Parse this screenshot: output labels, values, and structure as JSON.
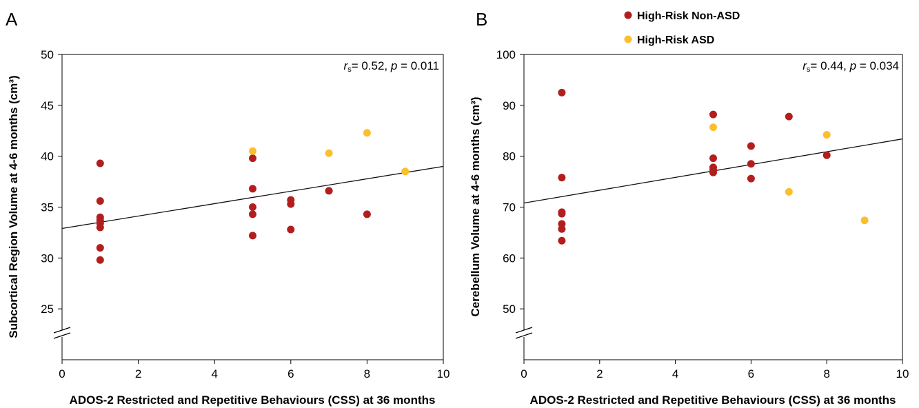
{
  "figure": {
    "legend": [
      {
        "label": "High-Risk Non-ASD",
        "color": "#b21e1e"
      },
      {
        "label": "High-Risk ASD",
        "color": "#fbbf2e"
      }
    ]
  },
  "chart_data": [
    {
      "type": "scatter",
      "panel": "A",
      "xlabel": "ADOS-2 Restricted and Repetitive Behaviours (CSS) at 36 months",
      "ylabel": "Subcortical Region Volume at 4-6 months (cm³)",
      "xlim": [
        0,
        10
      ],
      "ylim": [
        20,
        50
      ],
      "axis_break": true,
      "xticks": [
        0,
        2,
        4,
        6,
        8,
        10
      ],
      "yticks": [
        25,
        30,
        35,
        40,
        45,
        50
      ],
      "grid": false,
      "annotation": {
        "r_label": "r",
        "r_sub": "s",
        "r_value": "= 0.52, ",
        "p_label": "p",
        "p_value": " = 0.011"
      },
      "trendline": {
        "x": [
          0,
          10
        ],
        "y": [
          32.9,
          39.0
        ]
      },
      "series": [
        {
          "name": "High-Risk Non-ASD",
          "color": "#b21e1e",
          "points": [
            [
              1,
              39.3
            ],
            [
              1,
              35.6
            ],
            [
              1,
              34.0
            ],
            [
              1,
              33.7
            ],
            [
              1,
              33.4
            ],
            [
              1,
              33.0
            ],
            [
              1,
              31.0
            ],
            [
              1,
              29.8
            ],
            [
              5,
              39.8
            ],
            [
              5,
              36.8
            ],
            [
              5,
              35.0
            ],
            [
              5,
              34.3
            ],
            [
              5,
              32.2
            ],
            [
              6,
              35.7
            ],
            [
              6,
              35.3
            ],
            [
              6,
              32.8
            ],
            [
              7,
              36.6
            ],
            [
              8,
              34.3
            ]
          ]
        },
        {
          "name": "High-Risk ASD",
          "color": "#fbbf2e",
          "points": [
            [
              5,
              40.5
            ],
            [
              7,
              40.3
            ],
            [
              8,
              42.3
            ],
            [
              9,
              38.5
            ]
          ]
        }
      ]
    },
    {
      "type": "scatter",
      "panel": "B",
      "xlabel": "ADOS-2 Restricted and Repetitive Behaviours (CSS) at 36 months",
      "ylabel": "Cerebellum Volume at 4-6 months (cm³)",
      "xlim": [
        0,
        10
      ],
      "ylim": [
        40,
        100
      ],
      "axis_break": true,
      "xticks": [
        0,
        2,
        4,
        6,
        8,
        10
      ],
      "yticks": [
        50,
        60,
        70,
        80,
        90,
        100
      ],
      "grid": false,
      "annotation": {
        "r_label": "r",
        "r_sub": "s",
        "r_value": "= 0.44, ",
        "p_label": "p",
        "p_value": " = 0.034"
      },
      "trendline": {
        "x": [
          0,
          10
        ],
        "y": [
          70.8,
          83.4
        ]
      },
      "series": [
        {
          "name": "High-Risk Non-ASD",
          "color": "#b21e1e",
          "points": [
            [
              1,
              92.5
            ],
            [
              1,
              75.8
            ],
            [
              1,
              69.0
            ],
            [
              1,
              68.7
            ],
            [
              1,
              66.7
            ],
            [
              1,
              65.7
            ],
            [
              1,
              63.4
            ],
            [
              5,
              88.2
            ],
            [
              5,
              79.6
            ],
            [
              5,
              77.8
            ],
            [
              5,
              77.3
            ],
            [
              5,
              76.8
            ],
            [
              6,
              82.0
            ],
            [
              6,
              78.5
            ],
            [
              6,
              75.6
            ],
            [
              7,
              87.8
            ],
            [
              8,
              80.2
            ]
          ]
        },
        {
          "name": "High-Risk ASD",
          "color": "#fbbf2e",
          "points": [
            [
              5,
              85.7
            ],
            [
              7,
              73.0
            ],
            [
              8,
              84.2
            ],
            [
              9,
              67.4
            ]
          ]
        }
      ]
    }
  ]
}
